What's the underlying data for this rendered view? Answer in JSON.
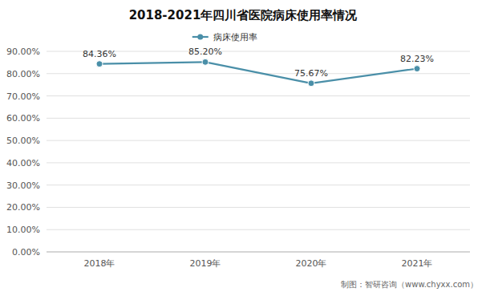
{
  "chart_data": {
    "type": "line",
    "title": "2018-2021年四川省医院病床使用率情况",
    "categories": [
      "2018年",
      "2019年",
      "2020年",
      "2021年"
    ],
    "series": [
      {
        "name": "病床使用率",
        "color": "#4a8fa8",
        "marker": "circle",
        "values": [
          0.8436,
          0.852,
          0.7567,
          0.8223
        ],
        "value_labels": [
          "84.36%",
          "85.20%",
          "75.67%",
          "82.23%"
        ]
      }
    ],
    "ylim": [
      0.0,
      0.9
    ],
    "yticks": [
      {
        "value": 0.0,
        "label": "0.00%"
      },
      {
        "value": 0.1,
        "label": "10.00%"
      },
      {
        "value": 0.2,
        "label": "20.00%"
      },
      {
        "value": 0.3,
        "label": "30.00%"
      },
      {
        "value": 0.4,
        "label": "40.00%"
      },
      {
        "value": 0.5,
        "label": "50.00%"
      },
      {
        "value": 0.6,
        "label": "60.00%"
      },
      {
        "value": 0.7,
        "label": "70.00%"
      },
      {
        "value": 0.8,
        "label": "80.00%"
      },
      {
        "value": 0.9,
        "label": "90.00%"
      }
    ],
    "grid": true,
    "legend": "top",
    "data_labels": true,
    "annotations": [
      "制图：智研咨询（www.chyxx.com）"
    ]
  }
}
